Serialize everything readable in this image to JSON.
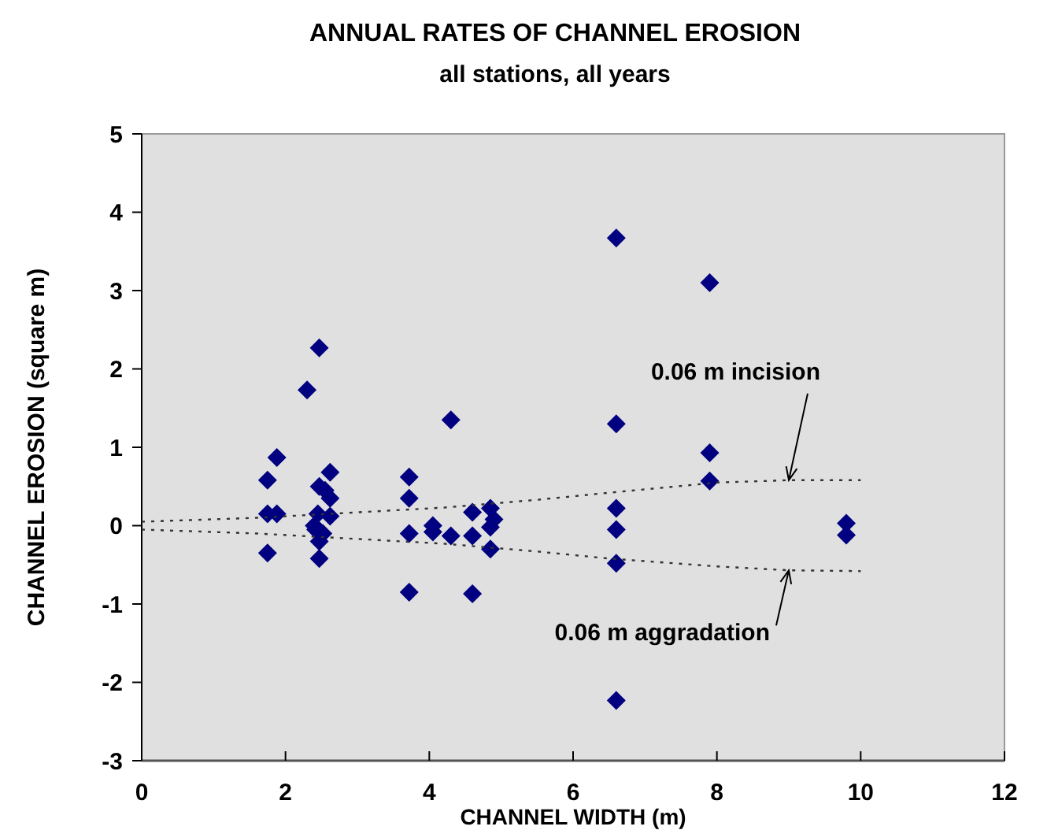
{
  "chart_data": {
    "type": "scatter",
    "title": "ANNUAL RATES OF CHANNEL EROSION",
    "subtitle": "all stations, all years",
    "xlabel": "CHANNEL WIDTH (m)",
    "ylabel": "CHANNEL  EROSION  (square  m)",
    "xlim": [
      0,
      12
    ],
    "xticks": [
      0,
      2,
      4,
      6,
      8,
      10,
      12
    ],
    "ylim": [
      -3,
      5
    ],
    "yticks": [
      -3,
      -2,
      -1,
      0,
      1,
      2,
      3,
      4,
      5
    ],
    "grid": false,
    "series": [
      {
        "marker": "diamond",
        "color": "#000080",
        "x": [
          1.75,
          1.75,
          1.75,
          1.88,
          1.88,
          2.3,
          2.4,
          2.42,
          2.45,
          2.47,
          2.47,
          2.55,
          2.47,
          2.47,
          2.52,
          2.62,
          2.62,
          2.62,
          3.72,
          3.72,
          3.72,
          3.72,
          4.05,
          4.05,
          4.3,
          4.3,
          4.6,
          4.6,
          4.6,
          4.85,
          4.9,
          4.85,
          4.85,
          6.6,
          6.6,
          6.6,
          6.6,
          6.6,
          6.6,
          7.9,
          7.9,
          7.9,
          9.8,
          9.8
        ],
        "values": [
          0.58,
          0.15,
          -0.35,
          0.87,
          0.15,
          1.73,
          0,
          -0.05,
          0.15,
          2.27,
          0.5,
          0.45,
          -0.2,
          -0.42,
          -0.1,
          0.68,
          0.35,
          0.12,
          0.62,
          0.35,
          -0.1,
          -0.85,
          0,
          -0.08,
          1.35,
          -0.13,
          0.17,
          -0.87,
          -0.13,
          0.22,
          0.08,
          -0.02,
          -0.3,
          3.67,
          1.3,
          0.22,
          -0.05,
          -0.48,
          -2.23,
          3.1,
          0.93,
          0.57,
          0.03,
          -0.12
        ]
      },
      {
        "type": "line",
        "marker": "none",
        "line_style": "dotted",
        "color": "#333333",
        "x": [
          0,
          1.6,
          4.2,
          5.5,
          6.5,
          8,
          9,
          10
        ],
        "values": [
          0.05,
          0.1,
          0.23,
          0.33,
          0.42,
          0.55,
          0.58,
          0.58
        ]
      },
      {
        "type": "line",
        "marker": "none",
        "line_style": "dotted",
        "color": "#333333",
        "x": [
          0,
          1.6,
          4.2,
          5.5,
          6.5,
          8,
          9,
          10
        ],
        "values": [
          -0.05,
          -0.1,
          -0.23,
          -0.33,
          -0.42,
          -0.52,
          -0.57,
          -0.58
        ]
      }
    ],
    "annotations": [
      {
        "text": "0.06 m incision",
        "x": 9,
        "y": 0.58
      },
      {
        "text": "0.06 m aggradation",
        "x": 9,
        "y": -0.57
      }
    ]
  }
}
